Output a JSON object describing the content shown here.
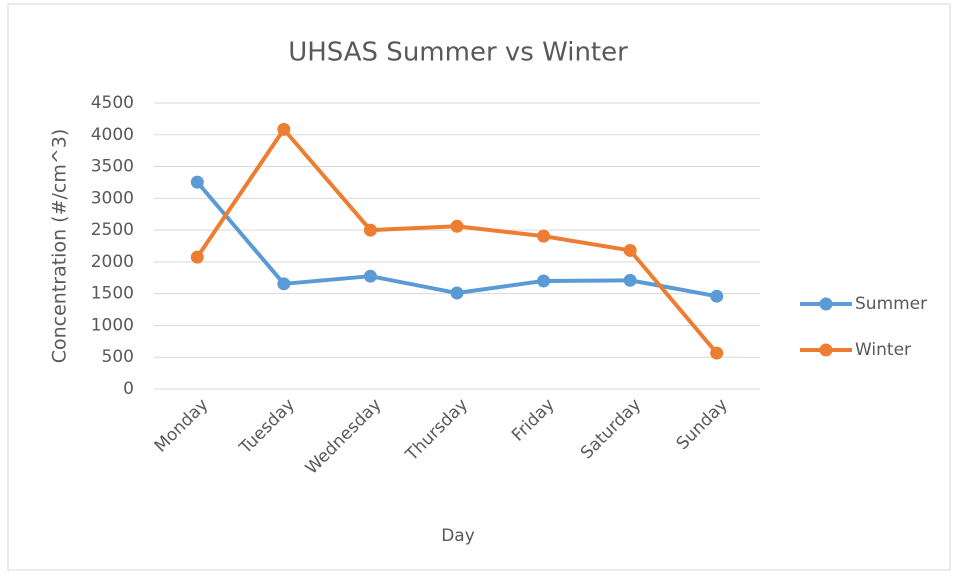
{
  "chart_data": {
    "type": "line",
    "title": "UHSAS Summer vs Winter",
    "x_label": "Day",
    "y_label": "Concentration (#/cm^3)",
    "categories": [
      "Monday",
      "Tuesday",
      "Wednesday",
      "Thursday",
      "Friday",
      "Saturday",
      "Sunday"
    ],
    "series": [
      {
        "name": "Summer",
        "color": "#5b9bd5",
        "values": [
          3255,
          1655,
          1775,
          1510,
          1700,
          1710,
          1460
        ]
      },
      {
        "name": "Winter",
        "color": "#ed7d31",
        "values": [
          2075,
          4085,
          2500,
          2560,
          2405,
          2180,
          565
        ]
      }
    ],
    "ylim": [
      0,
      4500
    ],
    "yticks": [
      0,
      500,
      1000,
      1500,
      2000,
      2500,
      3000,
      3500,
      4000,
      4500
    ],
    "grid": true,
    "legend": "right"
  }
}
